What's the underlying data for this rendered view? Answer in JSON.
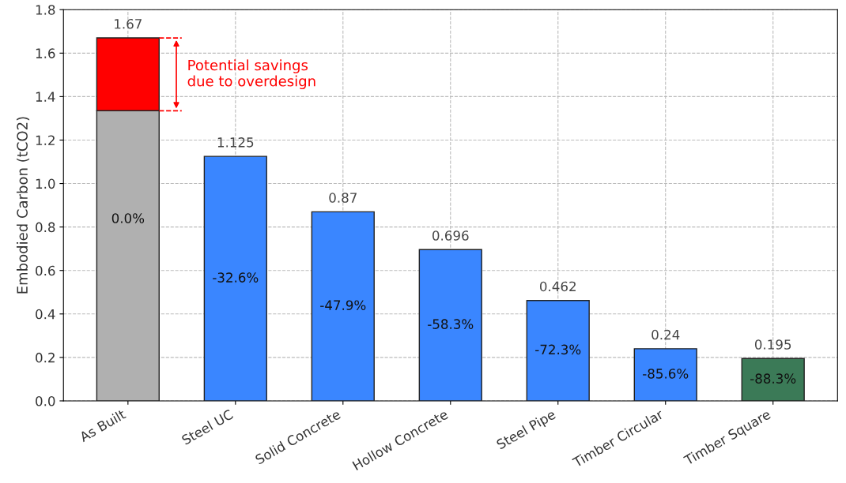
{
  "chart_data": {
    "type": "bar",
    "ylabel": "Embodied Carbon (tCO2)",
    "categories": [
      "As Built",
      "Steel UC",
      "Solid Concrete",
      "Hollow Concrete",
      "Steel Pipe",
      "Timber Circular",
      "Timber Square"
    ],
    "stacked": true,
    "series": [
      {
        "colors": [
          "#b0b0b0",
          "#3a86ff",
          "#3a86ff",
          "#3a86ff",
          "#3a86ff",
          "#3a86ff",
          "#3b7a57"
        ],
        "values": [
          1.335,
          1.125,
          0.87,
          0.696,
          0.462,
          0.24,
          0.195
        ]
      },
      {
        "color": "#ff0000",
        "values": [
          0.335,
          null,
          null,
          null,
          null,
          null,
          null
        ]
      }
    ],
    "totals": [
      "1.67",
      "1.125",
      "0.87",
      "0.696",
      "0.462",
      "0.24",
      "0.195"
    ],
    "annotations": [
      "0.0%",
      "-32.6%",
      "-47.9%",
      "-58.3%",
      "-72.3%",
      "-85.6%",
      "-88.3%",
      "Potential savings\ndue to overdesign"
    ],
    "ylim": [
      0,
      1.8
    ],
    "yticks": [
      {
        "value": 0,
        "label": "0.0"
      },
      0.2,
      0.4,
      0.6,
      0.8,
      {
        "value": 1,
        "label": "1.0"
      },
      1.2,
      1.4,
      1.6,
      1.8
    ],
    "grid": true
  }
}
